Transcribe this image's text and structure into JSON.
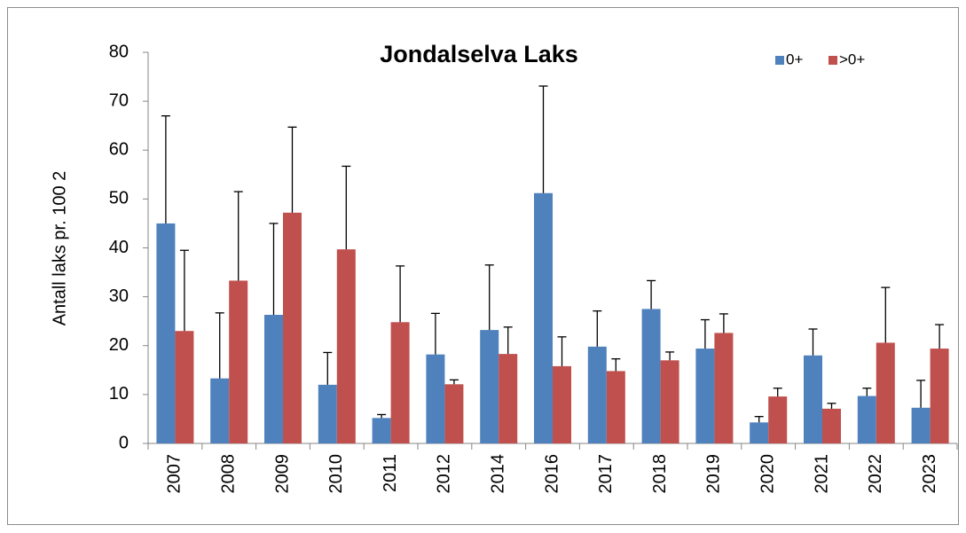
{
  "chart_data": {
    "type": "bar",
    "title": "Jondalselva Laks",
    "y_label": "Antall laks pr. 100 2",
    "categories": [
      "2007",
      "2008",
      "2009",
      "2010",
      "2011",
      "2012",
      "2014",
      "2016",
      "2017",
      "2018",
      "2019",
      "2020",
      "2021",
      "2022",
      "2023"
    ],
    "series": [
      {
        "name": "0+",
        "color": "#4f81bd",
        "values": [
          45,
          13.3,
          26.3,
          12,
          5.2,
          18.2,
          23.2,
          51.2,
          19.8,
          27.5,
          19.4,
          4.3,
          18,
          9.7,
          7.3
        ],
        "errors": [
          22,
          13.4,
          18.7,
          6.6,
          0.7,
          8.4,
          13.3,
          21.9,
          7.3,
          5.8,
          5.9,
          1.2,
          5.4,
          1.6,
          5.6
        ]
      },
      {
        "name": ">0+",
        "color": "#c0504d",
        "values": [
          23,
          33.3,
          47.2,
          39.7,
          24.8,
          12.1,
          18.3,
          15.8,
          14.8,
          17,
          22.6,
          9.6,
          7.1,
          20.6,
          19.4
        ],
        "errors": [
          16.5,
          18.2,
          17.5,
          17,
          11.5,
          0.9,
          5.5,
          6,
          2.5,
          1.7,
          3.9,
          1.7,
          1.1,
          11.3,
          4.9
        ]
      }
    ],
    "ylim": [
      0,
      80
    ],
    "yticks": [
      0,
      10,
      20,
      30,
      40,
      50,
      60,
      70,
      80
    ],
    "grid": false,
    "legend": "top-right"
  }
}
